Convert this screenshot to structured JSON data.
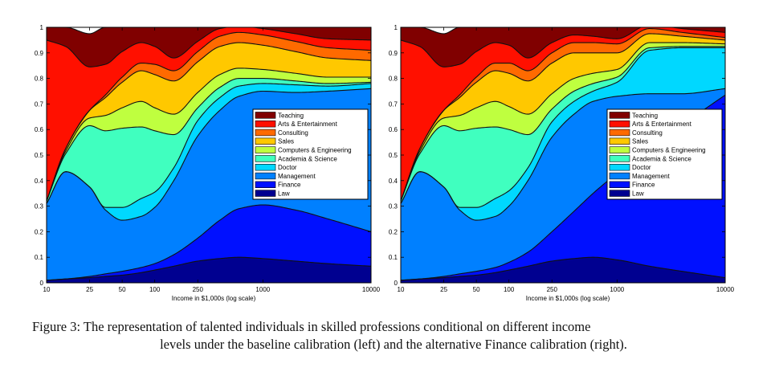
{
  "figure_caption": {
    "label": "Figure 3:",
    "line1": "The representation of talented individuals in skilled professions conditional on different income",
    "line2": "levels under the baseline calibration (left) and the alternative Finance calibration (right)."
  },
  "colors": {
    "Teaching": "#800000",
    "Arts & Entertainment": "#ff1000",
    "Consulting": "#ff6a00",
    "Sales": "#ffc800",
    "Computers & Engineering": "#bfff3f",
    "Academia & Science": "#40ffbf",
    "Doctor": "#00d8ff",
    "Management": "#0080ff",
    "Finance": "#0010ff",
    "Law": "#000090"
  },
  "chart_data": [
    {
      "type": "area",
      "stacked": true,
      "title": "",
      "xlabel": "Income in $1,000s (log scale)",
      "ylabel": "",
      "x_scale": "log",
      "xlim": [
        10,
        10000
      ],
      "ylim": [
        0,
        1
      ],
      "x_ticks": [
        10,
        25,
        50,
        100,
        250,
        1000,
        10000
      ],
      "x_tick_labels": [
        "10",
        "25",
        "50",
        "100",
        "250",
        "1000",
        "10000"
      ],
      "y_ticks": [
        0,
        0.1,
        0.2,
        0.3,
        0.4,
        0.5,
        0.6,
        0.7,
        0.8,
        0.9,
        1
      ],
      "y_tick_labels": [
        "0",
        "0.1",
        "0.2",
        "0.3",
        "0.4",
        "0.5",
        "0.6",
        "0.7",
        "0.8",
        "0.9",
        "1"
      ],
      "legend_position": "center-right",
      "legend": [
        "Teaching",
        "Arts & Entertainment",
        "Consulting",
        "Sales",
        "Computers & Engineering",
        "Academia & Science",
        "Doctor",
        "Management",
        "Finance",
        "Law"
      ],
      "x": [
        10,
        15,
        25,
        35,
        50,
        75,
        100,
        150,
        250,
        400,
        600,
        1000,
        2000,
        4000,
        10000
      ],
      "series": [
        {
          "name": "Law",
          "values": [
            0.01,
            0.015,
            0.02,
            0.025,
            0.03,
            0.04,
            0.05,
            0.065,
            0.085,
            0.095,
            0.1,
            0.095,
            0.085,
            0.075,
            0.065
          ]
        },
        {
          "name": "Finance",
          "values": [
            0.0,
            0.0,
            0.005,
            0.01,
            0.015,
            0.02,
            0.025,
            0.045,
            0.09,
            0.15,
            0.19,
            0.21,
            0.2,
            0.175,
            0.135
          ]
        },
        {
          "name": "Management",
          "values": [
            0.3,
            0.42,
            0.35,
            0.25,
            0.2,
            0.2,
            0.22,
            0.29,
            0.4,
            0.43,
            0.44,
            0.445,
            0.46,
            0.5,
            0.56
          ]
        },
        {
          "name": "Doctor",
          "values": [
            0.0,
            0.0,
            0.0,
            0.01,
            0.05,
            0.07,
            0.06,
            0.05,
            0.06,
            0.05,
            0.04,
            0.03,
            0.03,
            0.02,
            0.02
          ]
        },
        {
          "name": "Academia & Science",
          "values": [
            0.01,
            0.07,
            0.24,
            0.3,
            0.31,
            0.28,
            0.24,
            0.13,
            0.05,
            0.04,
            0.03,
            0.02,
            0.015,
            0.01,
            0.005
          ]
        },
        {
          "name": "Computers & Engineering",
          "values": [
            0.0,
            0.01,
            0.03,
            0.06,
            0.08,
            0.1,
            0.09,
            0.08,
            0.06,
            0.05,
            0.04,
            0.035,
            0.03,
            0.025,
            0.02
          ]
        },
        {
          "name": "Sales",
          "values": [
            0.0,
            0.01,
            0.03,
            0.07,
            0.1,
            0.12,
            0.13,
            0.13,
            0.12,
            0.11,
            0.1,
            0.095,
            0.085,
            0.075,
            0.065
          ]
        },
        {
          "name": "Consulting",
          "values": [
            0.0,
            0.0,
            0.0,
            0.01,
            0.02,
            0.03,
            0.04,
            0.04,
            0.04,
            0.04,
            0.04,
            0.04,
            0.04,
            0.04,
            0.04
          ]
        },
        {
          "name": "Arts & Entertainment",
          "values": [
            0.63,
            0.4,
            0.17,
            0.12,
            0.1,
            0.08,
            0.07,
            0.05,
            0.04,
            0.03,
            0.025,
            0.025,
            0.03,
            0.035,
            0.04
          ]
        },
        {
          "name": "Teaching",
          "values": [
            0.05,
            0.075,
            0.13,
            0.145,
            0.095,
            0.06,
            0.075,
            0.125,
            0.055,
            0.005,
            0.005,
            0.005,
            0.025,
            0.045,
            0.05
          ]
        }
      ]
    },
    {
      "type": "area",
      "stacked": true,
      "title": "",
      "xlabel": "Income in $1,000s (log scale)",
      "ylabel": "",
      "x_scale": "log",
      "xlim": [
        10,
        10000
      ],
      "ylim": [
        0,
        1
      ],
      "x_ticks": [
        10,
        25,
        50,
        100,
        250,
        1000,
        10000
      ],
      "x_tick_labels": [
        "10",
        "25",
        "50",
        "100",
        "250",
        "1000",
        "10000"
      ],
      "y_ticks": [
        0,
        0.1,
        0.2,
        0.3,
        0.4,
        0.5,
        0.6,
        0.7,
        0.8,
        0.9,
        1
      ],
      "y_tick_labels": [
        "0",
        "0.1",
        "0.2",
        "0.3",
        "0.4",
        "0.5",
        "0.6",
        "0.7",
        "0.8",
        "0.9",
        "1"
      ],
      "legend_position": "center-right",
      "legend": [
        "Teaching",
        "Arts & Entertainment",
        "Consulting",
        "Sales",
        "Computers & Engineering",
        "Academia & Science",
        "Doctor",
        "Management",
        "Finance",
        "Law"
      ],
      "x": [
        10,
        15,
        25,
        35,
        50,
        75,
        100,
        150,
        250,
        400,
        600,
        1000,
        2000,
        4000,
        10000
      ],
      "series": [
        {
          "name": "Law",
          "values": [
            0.01,
            0.015,
            0.02,
            0.025,
            0.03,
            0.04,
            0.05,
            0.065,
            0.085,
            0.095,
            0.1,
            0.09,
            0.065,
            0.045,
            0.02
          ]
        },
        {
          "name": "Finance",
          "values": [
            0.0,
            0.0,
            0.005,
            0.01,
            0.015,
            0.02,
            0.03,
            0.055,
            0.115,
            0.185,
            0.25,
            0.34,
            0.475,
            0.575,
            0.715
          ]
        },
        {
          "name": "Management",
          "values": [
            0.3,
            0.42,
            0.35,
            0.25,
            0.2,
            0.2,
            0.22,
            0.28,
            0.37,
            0.38,
            0.36,
            0.3,
            0.2,
            0.12,
            0.025
          ]
        },
        {
          "name": "Doctor",
          "values": [
            0.0,
            0.0,
            0.0,
            0.01,
            0.05,
            0.07,
            0.06,
            0.05,
            0.06,
            0.05,
            0.04,
            0.055,
            0.17,
            0.18,
            0.16
          ]
        },
        {
          "name": "Academia & Science",
          "values": [
            0.01,
            0.07,
            0.24,
            0.3,
            0.31,
            0.28,
            0.24,
            0.13,
            0.05,
            0.04,
            0.03,
            0.02,
            0.01,
            0.005,
            0.005
          ]
        },
        {
          "name": "Computers & Engineering",
          "values": [
            0.0,
            0.01,
            0.03,
            0.06,
            0.08,
            0.1,
            0.09,
            0.08,
            0.06,
            0.05,
            0.04,
            0.03,
            0.02,
            0.015,
            0.01
          ]
        },
        {
          "name": "Sales",
          "values": [
            0.0,
            0.01,
            0.03,
            0.07,
            0.1,
            0.12,
            0.13,
            0.13,
            0.12,
            0.1,
            0.08,
            0.065,
            0.035,
            0.025,
            0.015
          ]
        },
        {
          "name": "Consulting",
          "values": [
            0.0,
            0.0,
            0.0,
            0.01,
            0.02,
            0.03,
            0.04,
            0.04,
            0.04,
            0.04,
            0.04,
            0.035,
            0.02,
            0.015,
            0.01
          ]
        },
        {
          "name": "Arts & Entertainment",
          "values": [
            0.63,
            0.4,
            0.17,
            0.12,
            0.1,
            0.08,
            0.07,
            0.05,
            0.04,
            0.03,
            0.025,
            0.02,
            0.015,
            0.015,
            0.02
          ]
        },
        {
          "name": "Teaching",
          "values": [
            0.05,
            0.075,
            0.13,
            0.145,
            0.095,
            0.06,
            0.07,
            0.12,
            0.06,
            0.03,
            0.035,
            0.045,
            0.01,
            0.005,
            0.02
          ]
        }
      ]
    }
  ]
}
